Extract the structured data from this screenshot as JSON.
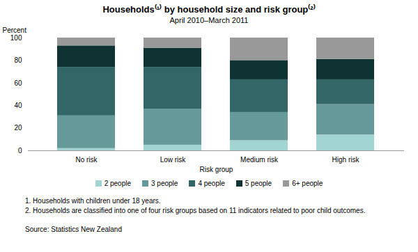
{
  "chart_data": {
    "type": "bar",
    "title": "Households⁽¹⁾ by household size and risk group⁽²⁾",
    "subtitle": "April 2010–March 2011",
    "x_label": "Risk group",
    "y_label": "Percent",
    "categories": [
      "No risk",
      "Low risk",
      "Medium risk",
      "High risk"
    ],
    "series": [
      {
        "name": "2 people",
        "color": "#a3d4d4",
        "values": [
          2,
          5,
          9,
          14
        ]
      },
      {
        "name": "3 people",
        "color": "#669999",
        "values": [
          29,
          32,
          25,
          27
        ]
      },
      {
        "name": "4 people",
        "color": "#336666",
        "values": [
          43,
          37,
          29,
          22
        ]
      },
      {
        "name": "5 people",
        "color": "#0f3333",
        "values": [
          19,
          17,
          17,
          18
        ]
      },
      {
        "name": "6+ people",
        "color": "#999999",
        "values": [
          7,
          9,
          20,
          19
        ]
      }
    ],
    "stacked": true,
    "ylim": [
      0,
      100
    ],
    "yticks": [
      0,
      20,
      40,
      60,
      80,
      100
    ],
    "grid": false,
    "legend": "bottom",
    "notes": [
      "1. Households with children under 18 years.",
      "2. Households are classified into one of four risk groups based on 11 indicators related to poor child outcomes."
    ],
    "source": "Source: Statistics New Zealand"
  }
}
